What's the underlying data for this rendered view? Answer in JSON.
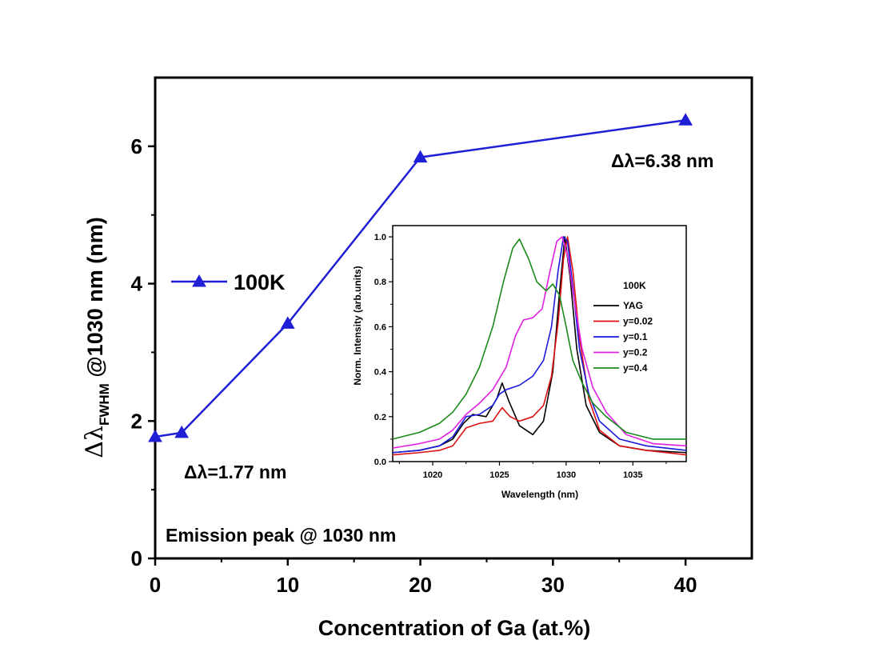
{
  "chart_data": [
    {
      "type": "line",
      "xlabel": "Concentration of Ga (at.%)",
      "ylabel_main": "Δλ",
      "ylabel_sub": "FWHM",
      "ylabel_rest": " @1030 nm (nm)",
      "xlim": [
        0,
        45
      ],
      "ylim": [
        0,
        7
      ],
      "x_ticks": [
        0,
        10,
        20,
        30,
        40
      ],
      "y_ticks": [
        0,
        2,
        4,
        6
      ],
      "series": [
        {
          "name": "100K",
          "color": "#1f1fd6",
          "marker": "triangle",
          "x": [
            0,
            2,
            10,
            20,
            40
          ],
          "y": [
            1.77,
            1.83,
            3.42,
            5.84,
            6.38
          ]
        }
      ],
      "annotations": {
        "left_value": "Δλ=1.77 nm",
        "right_value": "Δλ=6.38 nm",
        "footer": "Emission peak @ 1030 nm"
      },
      "legend_placement": "left-middle"
    },
    {
      "type": "line",
      "xlabel": "Wavelength (nm)",
      "ylabel": "Norm. Intensity (arb.units)",
      "xlim": [
        1017,
        1039
      ],
      "ylim": [
        0,
        1.05
      ],
      "x_ticks": [
        1020,
        1025,
        1030,
        1035
      ],
      "y_ticks": [
        0.0,
        0.2,
        0.4,
        0.6,
        0.8,
        1.0
      ],
      "legend_title": "100K",
      "legend_placement": "top-right",
      "series": [
        {
          "name": "YAG",
          "color": "#000000",
          "x": [
            1017,
            1019,
            1020.5,
            1021.5,
            1022.3,
            1023,
            1024,
            1024.8,
            1025.2,
            1025.7,
            1026.5,
            1027.5,
            1028.3,
            1029,
            1029.5,
            1029.9,
            1030.3,
            1030.8,
            1031.5,
            1032.5,
            1034,
            1036,
            1039
          ],
          "y": [
            0.04,
            0.05,
            0.07,
            0.1,
            0.17,
            0.21,
            0.2,
            0.28,
            0.35,
            0.27,
            0.16,
            0.12,
            0.18,
            0.4,
            0.75,
            1.0,
            0.82,
            0.5,
            0.25,
            0.13,
            0.07,
            0.05,
            0.04
          ]
        },
        {
          "name": "y=0.02",
          "color": "#e01010",
          "x": [
            1017,
            1019,
            1020.5,
            1021.5,
            1022.5,
            1023.5,
            1024.5,
            1025.2,
            1025.8,
            1026.5,
            1027.5,
            1028.3,
            1028.9,
            1029.4,
            1029.8,
            1030.1,
            1030.5,
            1031,
            1031.7,
            1032.5,
            1034,
            1036,
            1039
          ],
          "y": [
            0.03,
            0.04,
            0.05,
            0.07,
            0.15,
            0.17,
            0.18,
            0.24,
            0.2,
            0.18,
            0.2,
            0.25,
            0.38,
            0.62,
            0.9,
            1.0,
            0.85,
            0.55,
            0.28,
            0.14,
            0.07,
            0.05,
            0.03
          ]
        },
        {
          "name": "y=0.1",
          "color": "#1a1ae0",
          "x": [
            1017,
            1019,
            1020.5,
            1021.5,
            1022.5,
            1023.5,
            1024.5,
            1025,
            1025.5,
            1026.5,
            1027.5,
            1028.3,
            1028.9,
            1029.4,
            1029.8,
            1030.1,
            1030.5,
            1031,
            1031.7,
            1032.5,
            1034,
            1036,
            1039
          ],
          "y": [
            0.04,
            0.05,
            0.07,
            0.11,
            0.2,
            0.21,
            0.25,
            0.3,
            0.32,
            0.34,
            0.38,
            0.45,
            0.6,
            0.85,
            1.0,
            0.98,
            0.78,
            0.5,
            0.3,
            0.18,
            0.1,
            0.07,
            0.05
          ]
        },
        {
          "name": "y=0.2",
          "color": "#e020e0",
          "x": [
            1017,
            1019,
            1020.5,
            1021.5,
            1022.5,
            1023.5,
            1024.5,
            1025.5,
            1026.2,
            1026.8,
            1027.5,
            1028.2,
            1028.8,
            1029.3,
            1029.7,
            1030.1,
            1030.6,
            1031.2,
            1032,
            1033,
            1034.5,
            1036.5,
            1039
          ],
          "y": [
            0.06,
            0.08,
            0.1,
            0.14,
            0.21,
            0.26,
            0.32,
            0.42,
            0.56,
            0.63,
            0.64,
            0.68,
            0.85,
            0.98,
            1.0,
            0.92,
            0.72,
            0.5,
            0.33,
            0.22,
            0.12,
            0.08,
            0.07
          ]
        },
        {
          "name": "y=0.4",
          "color": "#1a8a1a",
          "x": [
            1017,
            1019,
            1020.5,
            1021.5,
            1022.5,
            1023.5,
            1024.5,
            1025.3,
            1026,
            1026.5,
            1027.2,
            1027.8,
            1028.5,
            1029,
            1029.5,
            1030,
            1030.5,
            1031.2,
            1032,
            1033,
            1034.5,
            1036.5,
            1039
          ],
          "y": [
            0.1,
            0.13,
            0.17,
            0.22,
            0.3,
            0.42,
            0.6,
            0.8,
            0.95,
            0.99,
            0.9,
            0.8,
            0.76,
            0.79,
            0.74,
            0.6,
            0.45,
            0.35,
            0.26,
            0.2,
            0.13,
            0.1,
            0.1
          ]
        }
      ]
    }
  ]
}
